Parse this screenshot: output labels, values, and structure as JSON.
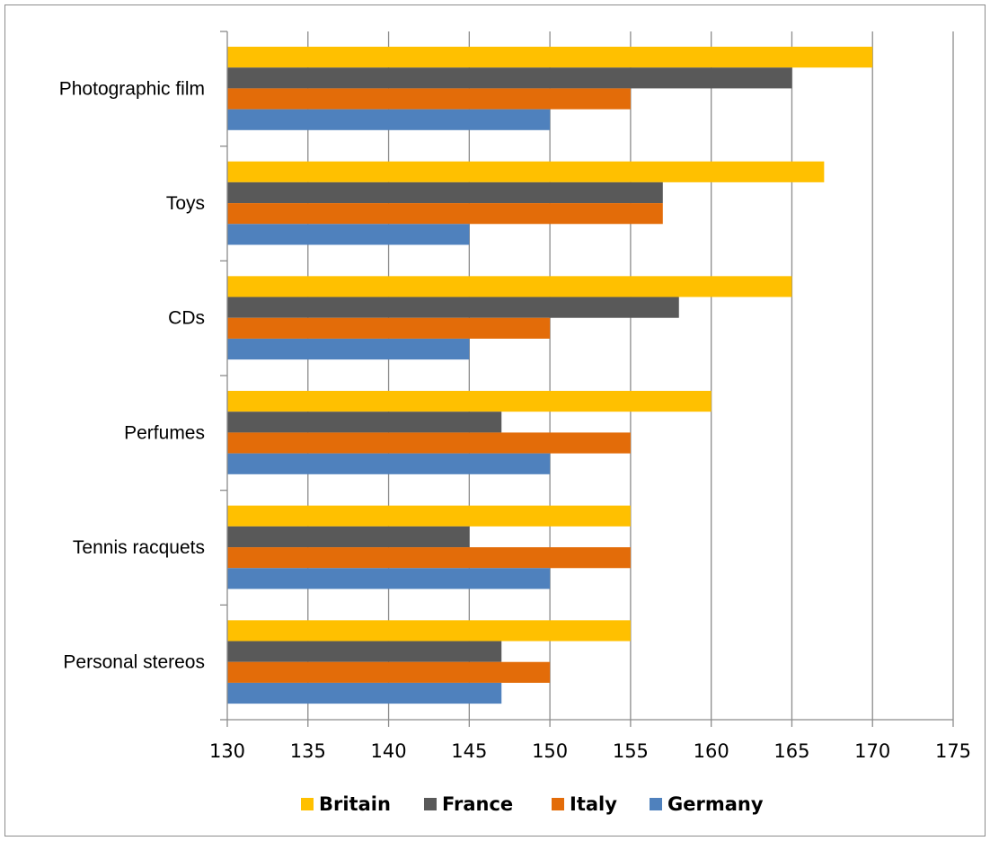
{
  "chart_data": {
    "type": "bar",
    "orientation": "horizontal",
    "categories": [
      "Photographic film",
      "Toys",
      "CDs",
      "Perfumes",
      "Tennis racquets",
      "Personal stereos"
    ],
    "series": [
      {
        "name": "Britain",
        "color": "#ffc000",
        "values": [
          170,
          167,
          165,
          160,
          155,
          155
        ]
      },
      {
        "name": "France",
        "color": "#595959",
        "values": [
          165,
          157,
          158,
          147,
          145,
          147
        ]
      },
      {
        "name": "Italy",
        "color": "#e36c09",
        "values": [
          155,
          157,
          150,
          155,
          155,
          150
        ]
      },
      {
        "name": "Germany",
        "color": "#4f81bd",
        "values": [
          150,
          145,
          145,
          150,
          150,
          147
        ]
      }
    ],
    "xlim": [
      130,
      175
    ],
    "xticks": [
      130,
      135,
      140,
      145,
      150,
      155,
      160,
      165,
      170,
      175
    ],
    "grid": "vertical",
    "legend_position": "bottom",
    "title": "",
    "xlabel": "",
    "ylabel": ""
  }
}
